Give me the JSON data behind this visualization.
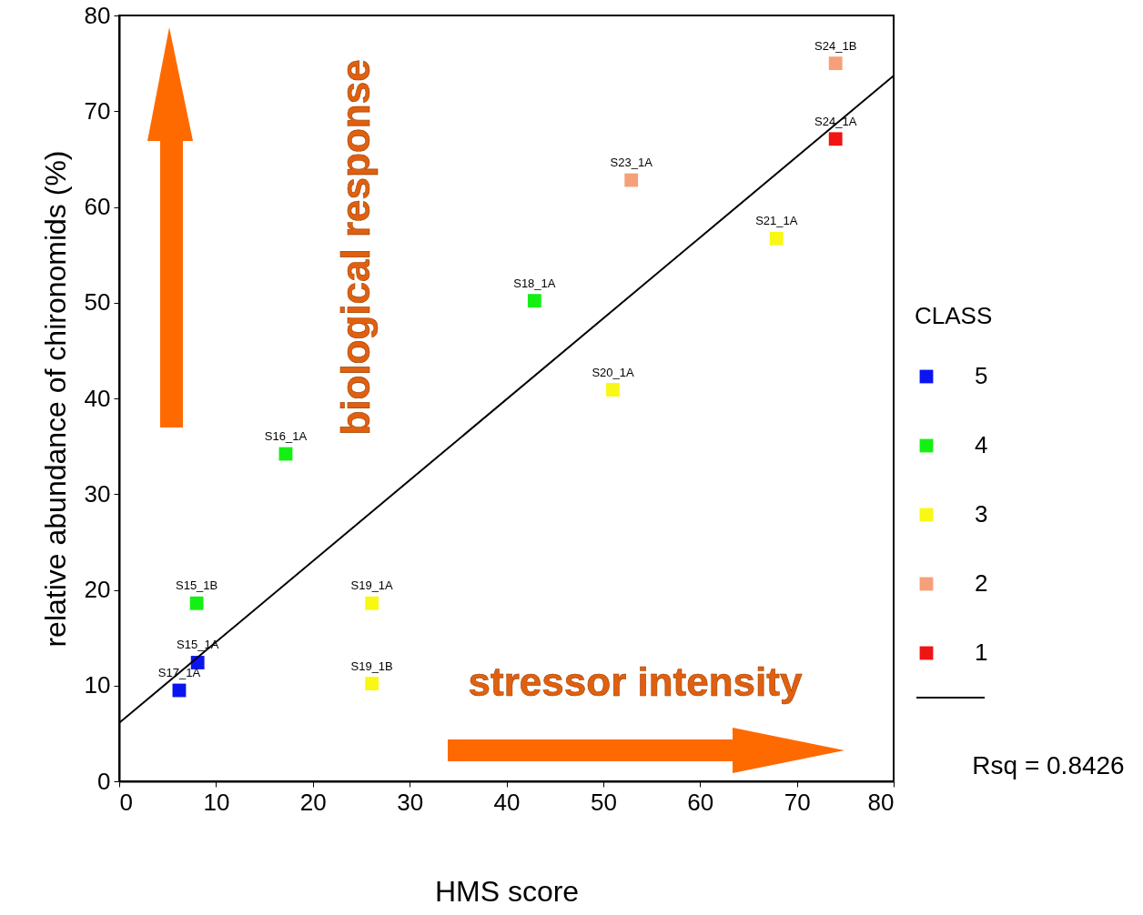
{
  "chart_data": {
    "type": "scatter",
    "xlabel": "HMS score",
    "ylabel": "relative abundance of chironomids (%)",
    "legend_title": "CLASS",
    "legend": "right",
    "marker": "square",
    "grid": false,
    "xlim": [
      0,
      80
    ],
    "xticks": [
      0,
      10,
      20,
      30,
      40,
      50,
      60,
      70,
      80
    ],
    "ylim": [
      0,
      80
    ],
    "yticks": [
      0,
      10,
      20,
      30,
      40,
      50,
      60,
      70,
      80
    ],
    "series": [
      {
        "name": "5",
        "color": "#0a14f0",
        "x": [
          6.2,
          8.1
        ],
        "values": [
          9.5,
          12.4
        ]
      },
      {
        "name": "4",
        "color": "#14f014",
        "x": [
          8.0,
          17.2,
          42.9
        ],
        "values": [
          18.6,
          34.2,
          50.2
        ]
      },
      {
        "name": "3",
        "color": "#f8f814",
        "x": [
          26.1,
          26.1,
          51.0,
          67.9
        ],
        "values": [
          18.6,
          10.2,
          40.9,
          56.7
        ]
      },
      {
        "name": "2",
        "color": "#f5a078",
        "x": [
          52.9,
          74.0
        ],
        "values": [
          62.8,
          75.0
        ]
      },
      {
        "name": "1",
        "color": "#f01414",
        "x": [
          74.0
        ],
        "values": [
          67.1
        ]
      },
      {
        "type": "line",
        "marker": "none",
        "color": "#000000",
        "x": [
          0,
          80
        ],
        "values": [
          6.1,
          73.7
        ]
      }
    ],
    "annotations": [
      {
        "text": "S24_1B",
        "x": 74.0,
        "y": 75.0
      },
      {
        "text": "S24_1A",
        "x": 74.0,
        "y": 67.1
      },
      {
        "text": "S23_1A",
        "x": 52.9,
        "y": 62.8
      },
      {
        "text": "S21_1A",
        "x": 67.9,
        "y": 56.7
      },
      {
        "text": "S18_1A",
        "x": 42.9,
        "y": 50.2
      },
      {
        "text": "S20_1A",
        "x": 51.0,
        "y": 40.9
      },
      {
        "text": "S16_1A",
        "x": 17.2,
        "y": 34.2
      },
      {
        "text": "S15_1B",
        "x": 8.0,
        "y": 18.6
      },
      {
        "text": "S19_1A",
        "x": 26.1,
        "y": 18.6
      },
      {
        "text": "S15_1A",
        "x": 8.1,
        "y": 12.4
      },
      {
        "text": "S17_1A",
        "x": 6.2,
        "y": 9.5
      },
      {
        "text": "S19_1B",
        "x": 26.1,
        "y": 10.2
      },
      "biological response",
      "stressor intensity",
      "Rsq = 0.8426"
    ]
  }
}
